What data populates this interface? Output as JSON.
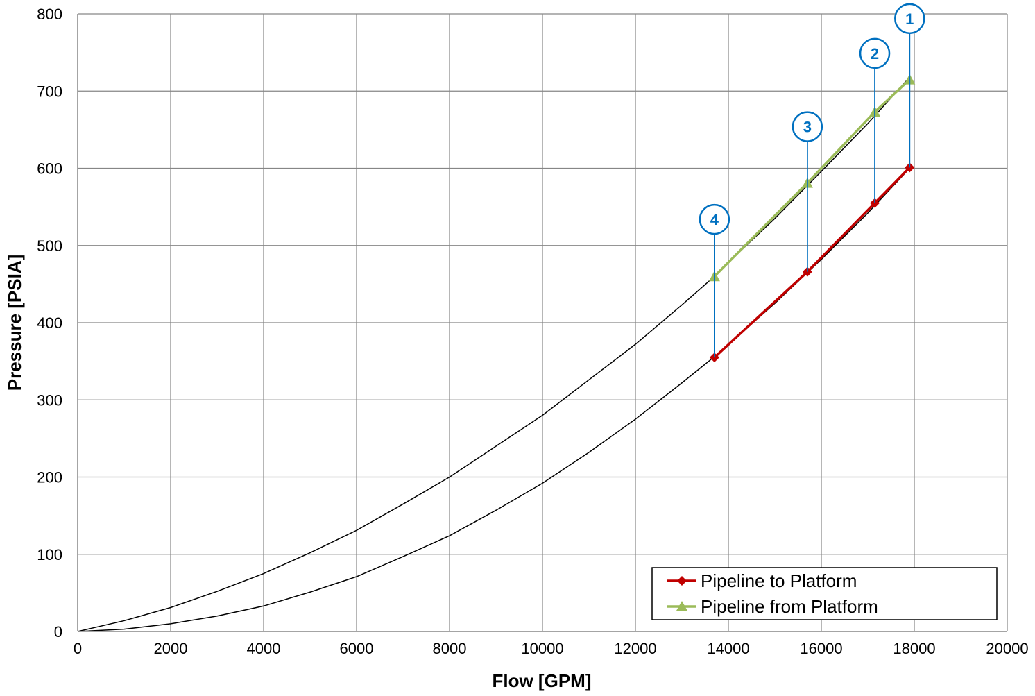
{
  "chart_data": {
    "type": "line",
    "title": "",
    "xlabel": "Flow [GPM]",
    "ylabel": "Pressure [PSIA]",
    "xlim": [
      0,
      20000
    ],
    "ylim": [
      0,
      800
    ],
    "x_ticks": [
      0,
      2000,
      4000,
      6000,
      8000,
      10000,
      12000,
      14000,
      16000,
      18000,
      20000
    ],
    "y_ticks": [
      0,
      100,
      200,
      300,
      400,
      500,
      600,
      700,
      800
    ],
    "grid": true,
    "legend_position": "bottom-right",
    "series": [
      {
        "name": "Pipeline to Platform",
        "color": "#C00000",
        "marker": "diamond",
        "x": [
          13700,
          15700,
          17150,
          17900
        ],
        "y": [
          355,
          466,
          555,
          601
        ]
      },
      {
        "name": "Pipeline from Platform",
        "color": "#9BBB59",
        "marker": "triangle",
        "x": [
          13700,
          15700,
          17150,
          17900
        ],
        "y": [
          460,
          581,
          673,
          715
        ]
      }
    ],
    "curves": [
      {
        "color": "#000000",
        "x": [
          0,
          1000,
          2000,
          3000,
          4000,
          5000,
          6000,
          7000,
          8000,
          9000,
          10000,
          11000,
          12000,
          13000,
          13700,
          14000,
          15000,
          16000,
          17000,
          17900
        ],
        "y": [
          0,
          14,
          31,
          52,
          75,
          102,
          131,
          165,
          200,
          240,
          280,
          326,
          372,
          423,
          460,
          478,
          535,
          596,
          658,
          718
        ]
      },
      {
        "color": "#000000",
        "x": [
          0,
          1000,
          2000,
          3000,
          4000,
          5000,
          6000,
          7000,
          8000,
          9000,
          10000,
          11000,
          12000,
          13000,
          13700,
          14000,
          15000,
          16000,
          17000,
          17900
        ],
        "y": [
          0,
          3,
          10,
          20,
          33,
          51,
          71,
          97,
          124,
          157,
          192,
          232,
          275,
          322,
          356,
          372,
          425,
          482,
          542,
          600
        ]
      }
    ],
    "annotations": [
      {
        "label": "1",
        "x": 17900,
        "y_from": 601,
        "y_to": 775,
        "color": "#0070C0"
      },
      {
        "label": "2",
        "x": 17150,
        "y_from": 555,
        "y_to": 730,
        "color": "#0070C0"
      },
      {
        "label": "3",
        "x": 15700,
        "y_from": 466,
        "y_to": 635,
        "color": "#0070C0"
      },
      {
        "label": "4",
        "x": 13700,
        "y_from": 355,
        "y_to": 515,
        "color": "#0070C0"
      }
    ]
  }
}
